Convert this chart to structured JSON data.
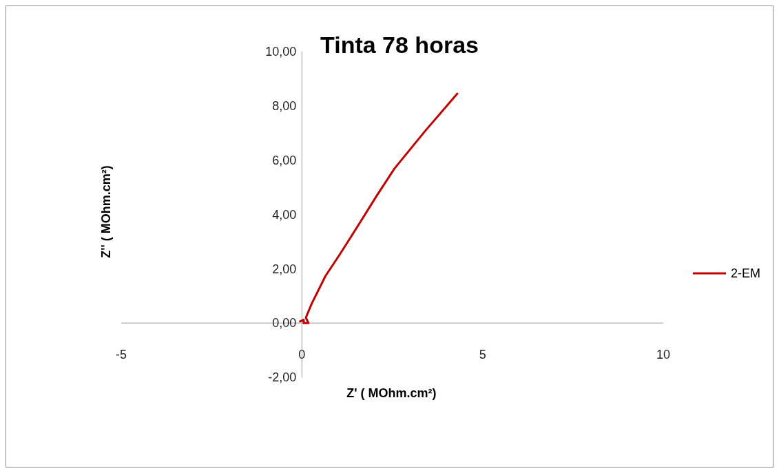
{
  "chart_data": {
    "type": "line",
    "title": "Tinta 78 horas",
    "xlabel": "Z' ( MOhm.cm²)",
    "ylabel": "Z'' ( MOhm.cm²)",
    "xlim": [
      -5,
      10
    ],
    "xticks": [
      -5,
      0,
      5,
      10
    ],
    "ylim": [
      -2,
      10
    ],
    "yticks": [
      {
        "value": -2,
        "label": "-2,00"
      },
      {
        "value": 0,
        "label": "0,00"
      },
      {
        "value": 2,
        "label": "2,00"
      },
      {
        "value": 4,
        "label": "4,00"
      },
      {
        "value": 6,
        "label": "6,00"
      },
      {
        "value": 8,
        "label": "8,00"
      },
      {
        "value": 10,
        "label": "10,00"
      }
    ],
    "grid": false,
    "legend": "right",
    "marker": "none",
    "line_style": "solid",
    "series": [
      {
        "name": "2-EM",
        "color": "#c00000",
        "x": [
          -0.05,
          0.05,
          0.05,
          0.18,
          0.11,
          0.27,
          0.65,
          1.03,
          1.55,
          2.06,
          2.56,
          3.4,
          4.3
        ],
        "values": [
          0.06,
          0.12,
          0.0,
          0.0,
          0.2,
          0.71,
          1.73,
          2.49,
          3.58,
          4.67,
          5.69,
          7.06,
          8.45
        ]
      }
    ]
  }
}
